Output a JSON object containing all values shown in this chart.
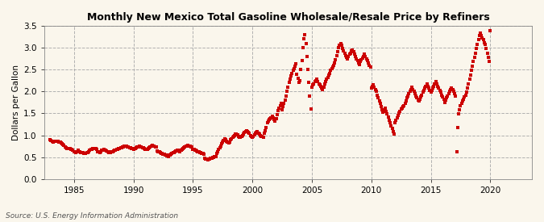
{
  "title": "Monthly New Mexico Total Gasoline Wholesale/Resale Price by Refiners",
  "ylabel": "Dollars per Gallon",
  "source": "Source: U.S. Energy Information Administration",
  "bg_color": "#FAF6EC",
  "marker_color": "#CC0000",
  "ylim": [
    0.0,
    3.5
  ],
  "yticks": [
    0.0,
    0.5,
    1.0,
    1.5,
    2.0,
    2.5,
    3.0,
    3.5
  ],
  "xticks": [
    1985,
    1990,
    1995,
    2000,
    2005,
    2010,
    2015,
    2020
  ],
  "xlim": [
    1982.5,
    2023.5
  ],
  "start_year": 1983,
  "start_month": 1,
  "prices": [
    0.89,
    0.88,
    0.86,
    0.85,
    0.86,
    0.86,
    0.87,
    0.87,
    0.86,
    0.85,
    0.84,
    0.83,
    0.8,
    0.79,
    0.77,
    0.73,
    0.71,
    0.7,
    0.69,
    0.7,
    0.69,
    0.68,
    0.67,
    0.65,
    0.63,
    0.62,
    0.61,
    0.63,
    0.65,
    0.63,
    0.62,
    0.61,
    0.6,
    0.6,
    0.59,
    0.58,
    0.59,
    0.6,
    0.61,
    0.63,
    0.65,
    0.67,
    0.68,
    0.69,
    0.7,
    0.7,
    0.69,
    0.68,
    0.63,
    0.62,
    0.61,
    0.63,
    0.65,
    0.66,
    0.67,
    0.66,
    0.65,
    0.64,
    0.62,
    0.61,
    0.6,
    0.61,
    0.62,
    0.63,
    0.64,
    0.65,
    0.66,
    0.67,
    0.68,
    0.69,
    0.7,
    0.71,
    0.72,
    0.73,
    0.74,
    0.75,
    0.76,
    0.75,
    0.74,
    0.73,
    0.72,
    0.71,
    0.7,
    0.69,
    0.68,
    0.69,
    0.7,
    0.71,
    0.73,
    0.74,
    0.75,
    0.74,
    0.73,
    0.72,
    0.71,
    0.7,
    0.68,
    0.67,
    0.68,
    0.7,
    0.72,
    0.74,
    0.76,
    0.77,
    0.76,
    0.75,
    0.74,
    0.73,
    0.64,
    0.63,
    0.62,
    0.61,
    0.59,
    0.58,
    0.57,
    0.56,
    0.55,
    0.54,
    0.53,
    0.52,
    0.54,
    0.55,
    0.56,
    0.58,
    0.6,
    0.61,
    0.63,
    0.64,
    0.66,
    0.65,
    0.64,
    0.63,
    0.65,
    0.67,
    0.7,
    0.72,
    0.74,
    0.75,
    0.76,
    0.77,
    0.76,
    0.75,
    0.74,
    0.73,
    0.68,
    0.67,
    0.66,
    0.65,
    0.64,
    0.63,
    0.62,
    0.61,
    0.6,
    0.59,
    0.58,
    0.57,
    0.47,
    0.46,
    0.45,
    0.44,
    0.45,
    0.46,
    0.47,
    0.48,
    0.49,
    0.5,
    0.51,
    0.52,
    0.58,
    0.62,
    0.67,
    0.72,
    0.76,
    0.8,
    0.85,
    0.88,
    0.92,
    0.9,
    0.87,
    0.84,
    0.82,
    0.85,
    0.89,
    0.92,
    0.95,
    0.98,
    1.0,
    1.02,
    1.03,
    1.01,
    0.98,
    0.96,
    0.95,
    0.97,
    1.0,
    1.03,
    1.06,
    1.08,
    1.1,
    1.09,
    1.07,
    1.05,
    1.0,
    0.98,
    0.96,
    0.98,
    1.01,
    1.04,
    1.07,
    1.09,
    1.05,
    1.02,
    1.0,
    0.98,
    0.97,
    0.96,
    1.05,
    1.1,
    1.18,
    1.28,
    1.33,
    1.36,
    1.38,
    1.4,
    1.43,
    1.4,
    1.36,
    1.33,
    1.38,
    1.47,
    1.57,
    1.62,
    1.68,
    1.72,
    1.58,
    1.65,
    1.72,
    1.8,
    1.9,
    2.0,
    2.1,
    2.2,
    2.28,
    2.35,
    2.42,
    2.48,
    2.53,
    2.58,
    2.63,
    2.4,
    2.3,
    2.2,
    2.25,
    2.5,
    2.7,
    3.0,
    3.2,
    3.3,
    3.1,
    2.8,
    2.5,
    2.2,
    1.9,
    1.6,
    2.1,
    2.15,
    2.18,
    2.22,
    2.25,
    2.28,
    2.22,
    2.18,
    2.15,
    2.12,
    2.08,
    2.05,
    2.1,
    2.18,
    2.22,
    2.28,
    2.32,
    2.38,
    2.42,
    2.48,
    2.52,
    2.56,
    2.6,
    2.65,
    2.72,
    2.82,
    2.9,
    3.0,
    3.05,
    3.1,
    3.05,
    2.98,
    2.92,
    2.88,
    2.82,
    2.78,
    2.75,
    2.8,
    2.85,
    2.88,
    2.92,
    2.95,
    2.9,
    2.85,
    2.8,
    2.75,
    2.7,
    2.65,
    2.62,
    2.68,
    2.72,
    2.76,
    2.8,
    2.85,
    2.8,
    2.75,
    2.7,
    2.65,
    2.6,
    2.55,
    2.08,
    2.12,
    2.15,
    2.1,
    2.05,
    2.0,
    1.92,
    1.85,
    1.78,
    1.72,
    1.65,
    1.58,
    1.52,
    1.58,
    1.62,
    1.55,
    1.48,
    1.42,
    1.35,
    1.28,
    1.22,
    1.15,
    1.08,
    1.02,
    1.28,
    1.35,
    1.4,
    1.45,
    1.5,
    1.55,
    1.6,
    1.62,
    1.65,
    1.68,
    1.72,
    1.78,
    1.85,
    1.9,
    1.95,
    2.0,
    2.05,
    2.1,
    2.05,
    2.0,
    1.95,
    1.9,
    1.85,
    1.8,
    1.78,
    1.82,
    1.88,
    1.92,
    1.98,
    2.02,
    2.08,
    2.12,
    2.18,
    2.12,
    2.08,
    2.02,
    1.98,
    2.02,
    2.08,
    2.12,
    2.18,
    2.22,
    2.18,
    2.12,
    2.08,
    2.02,
    1.98,
    1.92,
    1.88,
    1.82,
    1.75,
    1.8,
    1.85,
    1.9,
    1.95,
    2.0,
    2.05,
    2.08,
    2.05,
    2.0,
    1.95,
    1.9,
    0.62,
    1.18,
    1.48,
    1.58,
    1.68,
    1.72,
    1.78,
    1.82,
    1.88,
    1.92,
    1.98,
    2.08,
    2.18,
    2.28,
    2.38,
    2.48,
    2.58,
    2.68,
    2.78,
    2.88,
    2.98,
    3.08,
    3.18,
    3.28,
    3.33,
    3.28,
    3.22,
    3.18,
    3.12,
    3.08,
    2.98,
    2.88,
    2.78,
    2.68,
    3.38
  ]
}
